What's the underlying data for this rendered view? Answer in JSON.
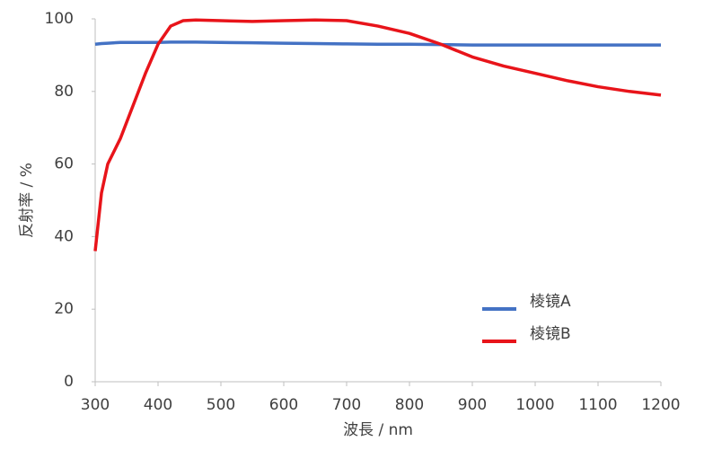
{
  "chart_data": {
    "type": "line",
    "xlabel": "波長 / nm",
    "ylabel": "反射率 / %",
    "x": [
      300,
      310,
      320,
      340,
      360,
      380,
      400,
      420,
      440,
      460,
      500,
      550,
      600,
      650,
      700,
      750,
      800,
      850,
      900,
      950,
      1000,
      1050,
      1100,
      1150,
      1200
    ],
    "series": [
      {
        "name": "棱镜A",
        "color": "#4472c4",
        "values": [
          93,
          93.2,
          93.3,
          93.5,
          93.5,
          93.5,
          93.5,
          93.6,
          93.6,
          93.6,
          93.5,
          93.4,
          93.3,
          93.2,
          93.1,
          93,
          93,
          92.9,
          92.8,
          92.8,
          92.8,
          92.8,
          92.8,
          92.8,
          92.8
        ]
      },
      {
        "name": "棱镜B",
        "color": "#e8141a",
        "values": [
          36,
          52,
          60,
          67,
          76,
          85,
          93,
          98,
          99.5,
          99.7,
          99.5,
          99.3,
          99.5,
          99.7,
          99.5,
          98,
          96,
          93,
          89.5,
          87,
          85,
          83,
          81.3,
          80,
          79
        ]
      }
    ],
    "xlim": [
      300,
      1200
    ],
    "xticks": [
      300,
      400,
      500,
      600,
      700,
      800,
      900,
      1000,
      1100,
      1200
    ],
    "ylim": [
      0,
      100
    ],
    "yticks": [
      0,
      20,
      40,
      60,
      80,
      100
    ],
    "grid": false
  }
}
